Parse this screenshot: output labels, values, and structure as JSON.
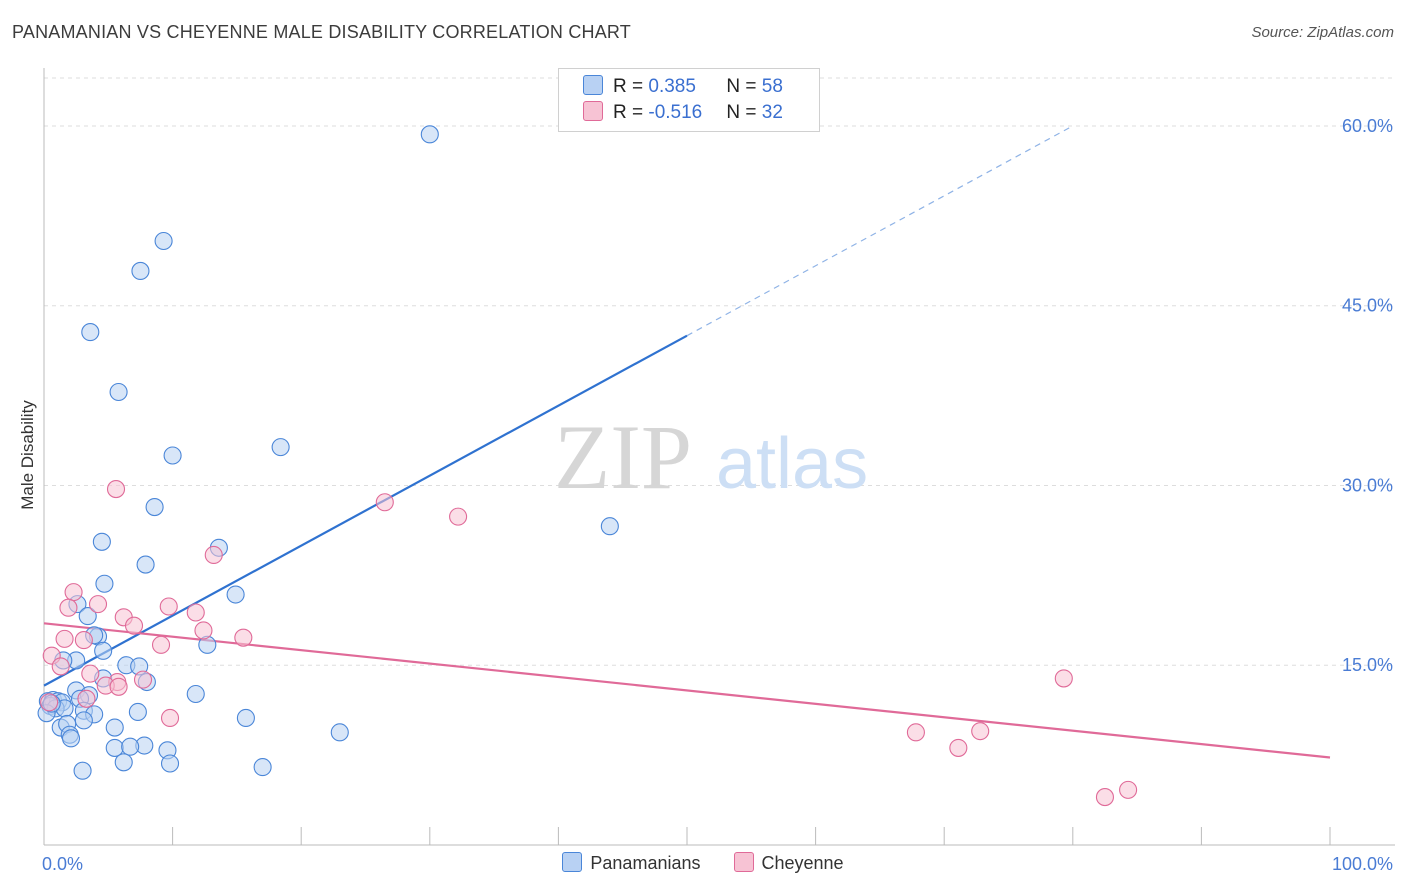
{
  "title": "PANAMANIAN VS CHEYENNE MALE DISABILITY CORRELATION CHART",
  "source": "Source: ZipAtlas.com",
  "watermark": {
    "zip": "ZIP",
    "atlas": "atlas"
  },
  "colors": {
    "blue": "#4a86d8",
    "blue_fill": "#b8d1f3",
    "pink": "#e06a98",
    "pink_fill": "#f7c3d4",
    "grid": "#dddddd",
    "axis_text": "#4a7cd4"
  },
  "legend": {
    "rows": [
      {
        "r_label": "R = ",
        "r_value": "0.385",
        "n_label": "N = ",
        "n_value": "58"
      },
      {
        "r_label": "R = ",
        "r_value": "-0.516",
        "n_label": "N = ",
        "n_value": "32"
      }
    ]
  },
  "bottom_legend": [
    "Panamanians",
    "Cheyenne"
  ],
  "chart_data": {
    "type": "scatter",
    "title": "PANAMANIAN VS CHEYENNE MALE DISABILITY CORRELATION CHART",
    "xlabel": "",
    "ylabel": "Male Disability",
    "xlim": [
      0,
      100
    ],
    "ylim": [
      0,
      64
    ],
    "x_tick_labels": [
      "0.0%",
      "100.0%"
    ],
    "y_ticks": [
      15,
      30,
      45,
      60
    ],
    "y_tick_labels": [
      "15.0%",
      "30.0%",
      "45.0%",
      "60.0%"
    ],
    "grid": true,
    "series": [
      {
        "name": "Panamanians",
        "r": 0.385,
        "n": 58,
        "trend": {
          "x0": 0,
          "y0": 13.3,
          "x1": 50,
          "y1": 42.5,
          "dashed_to_x": 80,
          "dashed_to_y": 60.0
        },
        "points": [
          [
            30,
            59.3
          ],
          [
            9.3,
            50.4
          ],
          [
            7.5,
            47.9
          ],
          [
            3.6,
            42.8
          ],
          [
            5.8,
            37.8
          ],
          [
            10,
            32.5
          ],
          [
            18.4,
            33.2
          ],
          [
            8.6,
            28.2
          ],
          [
            4.5,
            25.3
          ],
          [
            13.6,
            24.8
          ],
          [
            7.9,
            23.4
          ],
          [
            4.7,
            21.8
          ],
          [
            2.6,
            20.1
          ],
          [
            14.9,
            20.9
          ],
          [
            3.4,
            19.1
          ],
          [
            4.2,
            17.4
          ],
          [
            3.9,
            17.5
          ],
          [
            12.7,
            16.7
          ],
          [
            4.6,
            16.2
          ],
          [
            2.5,
            15.4
          ],
          [
            1.5,
            15.4
          ],
          [
            6.4,
            15.0
          ],
          [
            7.4,
            14.9
          ],
          [
            4.6,
            13.9
          ],
          [
            8.0,
            13.6
          ],
          [
            2.5,
            12.9
          ],
          [
            3.5,
            12.5
          ],
          [
            11.8,
            12.6
          ],
          [
            0.3,
            12.0
          ],
          [
            0.7,
            12.1
          ],
          [
            1.1,
            12.0
          ],
          [
            1.4,
            11.9
          ],
          [
            0.5,
            11.6
          ],
          [
            2.8,
            12.2
          ],
          [
            0.9,
            11.4
          ],
          [
            1.6,
            11.4
          ],
          [
            0.2,
            11.0
          ],
          [
            3.1,
            11.2
          ],
          [
            3.9,
            10.9
          ],
          [
            7.3,
            11.1
          ],
          [
            15.7,
            10.6
          ],
          [
            3.1,
            10.4
          ],
          [
            1.3,
            9.8
          ],
          [
            1.8,
            10.1
          ],
          [
            5.5,
            9.8
          ],
          [
            2.0,
            9.2
          ],
          [
            2.1,
            8.9
          ],
          [
            23.0,
            9.4
          ],
          [
            5.5,
            8.1
          ],
          [
            7.8,
            8.3
          ],
          [
            6.7,
            8.2
          ],
          [
            9.6,
            7.9
          ],
          [
            6.2,
            6.9
          ],
          [
            9.8,
            6.8
          ],
          [
            17.0,
            6.5
          ],
          [
            3.0,
            6.2
          ],
          [
            44.0,
            26.6
          ],
          [
            0.6,
            11.8
          ]
        ]
      },
      {
        "name": "Cheyenne",
        "r": -0.516,
        "n": 32,
        "trend": {
          "x0": 0,
          "y0": 18.5,
          "x1": 100,
          "y1": 7.3
        },
        "points": [
          [
            5.6,
            29.7
          ],
          [
            26.5,
            28.6
          ],
          [
            32.2,
            27.4
          ],
          [
            13.2,
            24.2
          ],
          [
            2.3,
            21.1
          ],
          [
            1.9,
            19.8
          ],
          [
            4.2,
            20.1
          ],
          [
            9.7,
            19.9
          ],
          [
            11.8,
            19.4
          ],
          [
            6.2,
            19.0
          ],
          [
            7.0,
            18.3
          ],
          [
            3.1,
            17.1
          ],
          [
            1.6,
            17.2
          ],
          [
            12.4,
            17.9
          ],
          [
            15.5,
            17.3
          ],
          [
            9.1,
            16.7
          ],
          [
            0.6,
            15.8
          ],
          [
            1.3,
            14.9
          ],
          [
            3.6,
            14.3
          ],
          [
            5.7,
            13.6
          ],
          [
            7.7,
            13.8
          ],
          [
            4.8,
            13.3
          ],
          [
            5.8,
            13.2
          ],
          [
            3.3,
            12.2
          ],
          [
            0.4,
            11.9
          ],
          [
            9.8,
            10.6
          ],
          [
            79.3,
            13.9
          ],
          [
            67.8,
            9.4
          ],
          [
            72.8,
            9.5
          ],
          [
            71.1,
            8.1
          ],
          [
            84.3,
            4.6
          ],
          [
            82.5,
            4.0
          ]
        ]
      }
    ]
  }
}
